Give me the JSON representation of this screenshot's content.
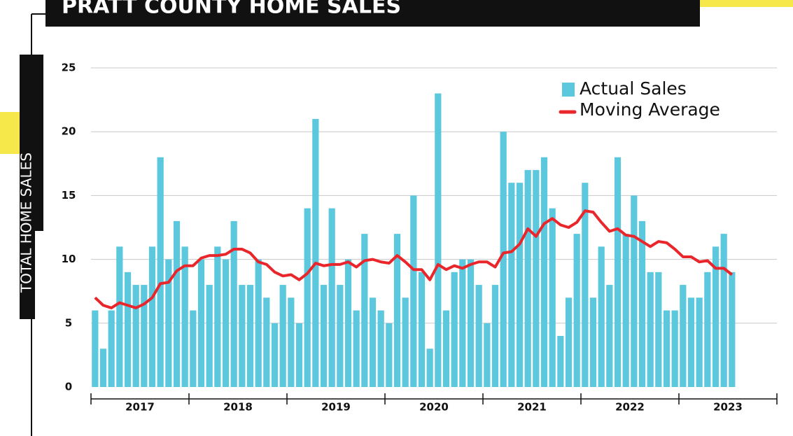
{
  "chart_data": {
    "type": "bar_line",
    "title": "PRATT COUNTY HOME SALES",
    "y_label": "TOTAL HOME SALES",
    "year_labels": [
      "2017",
      "2018",
      "2019",
      "2020",
      "2021",
      "2022",
      "2023"
    ],
    "months_per_year": 12,
    "series": [
      {
        "name": "Actual Sales",
        "color": "#5bc8de",
        "type": "bar",
        "values": [
          6,
          3,
          6,
          11,
          9,
          8,
          8,
          11,
          18,
          10,
          13,
          11,
          6,
          10,
          8,
          11,
          10,
          13,
          8,
          8,
          10,
          7,
          5,
          8,
          7,
          5,
          14,
          21,
          8,
          14,
          8,
          10,
          6,
          12,
          7,
          6,
          5,
          12,
          7,
          15,
          9,
          3,
          23,
          6,
          9,
          10,
          10,
          8,
          5,
          8,
          20,
          16,
          16,
          17,
          17,
          18,
          14,
          4,
          7,
          12,
          16,
          7,
          11,
          8,
          18,
          12,
          15,
          13,
          9,
          9,
          6,
          6,
          8,
          7,
          7,
          9,
          11,
          12,
          9
        ]
      },
      {
        "name": "Moving Average",
        "color": "#e8262b",
        "type": "line",
        "values": [
          7,
          6.4,
          6.2,
          6.6,
          6.4,
          6.2,
          6.5,
          7,
          8.1,
          8.2,
          9.1,
          9.5,
          9.5,
          10.1,
          10.3,
          10.3,
          10.4,
          10.8,
          10.8,
          10.5,
          9.8,
          9.6,
          9,
          8.7,
          8.8,
          8.4,
          8.9,
          9.7,
          9.5,
          9.6,
          9.6,
          9.8,
          9.4,
          9.9,
          10,
          9.8,
          9.7,
          10.3,
          9.8,
          9.2,
          9.2,
          8.4,
          9.6,
          9.2,
          9.5,
          9.3,
          9.6,
          9.8,
          9.8,
          9.4,
          10.5,
          10.6,
          11.2,
          12.4,
          11.8,
          12.8,
          13.2,
          12.7,
          12.5,
          12.9,
          13.8,
          13.7,
          12.9,
          12.2,
          12.4,
          11.9,
          11.8,
          11.4,
          11,
          11.4,
          11.3,
          10.8,
          10.2,
          10.2,
          9.8,
          9.9,
          9.3,
          9.3,
          8.8
        ]
      }
    ],
    "ylim": [
      0,
      25
    ],
    "yticks": [
      0,
      5,
      10,
      15,
      20,
      25
    ],
    "grid": true,
    "legend": "top-right"
  }
}
